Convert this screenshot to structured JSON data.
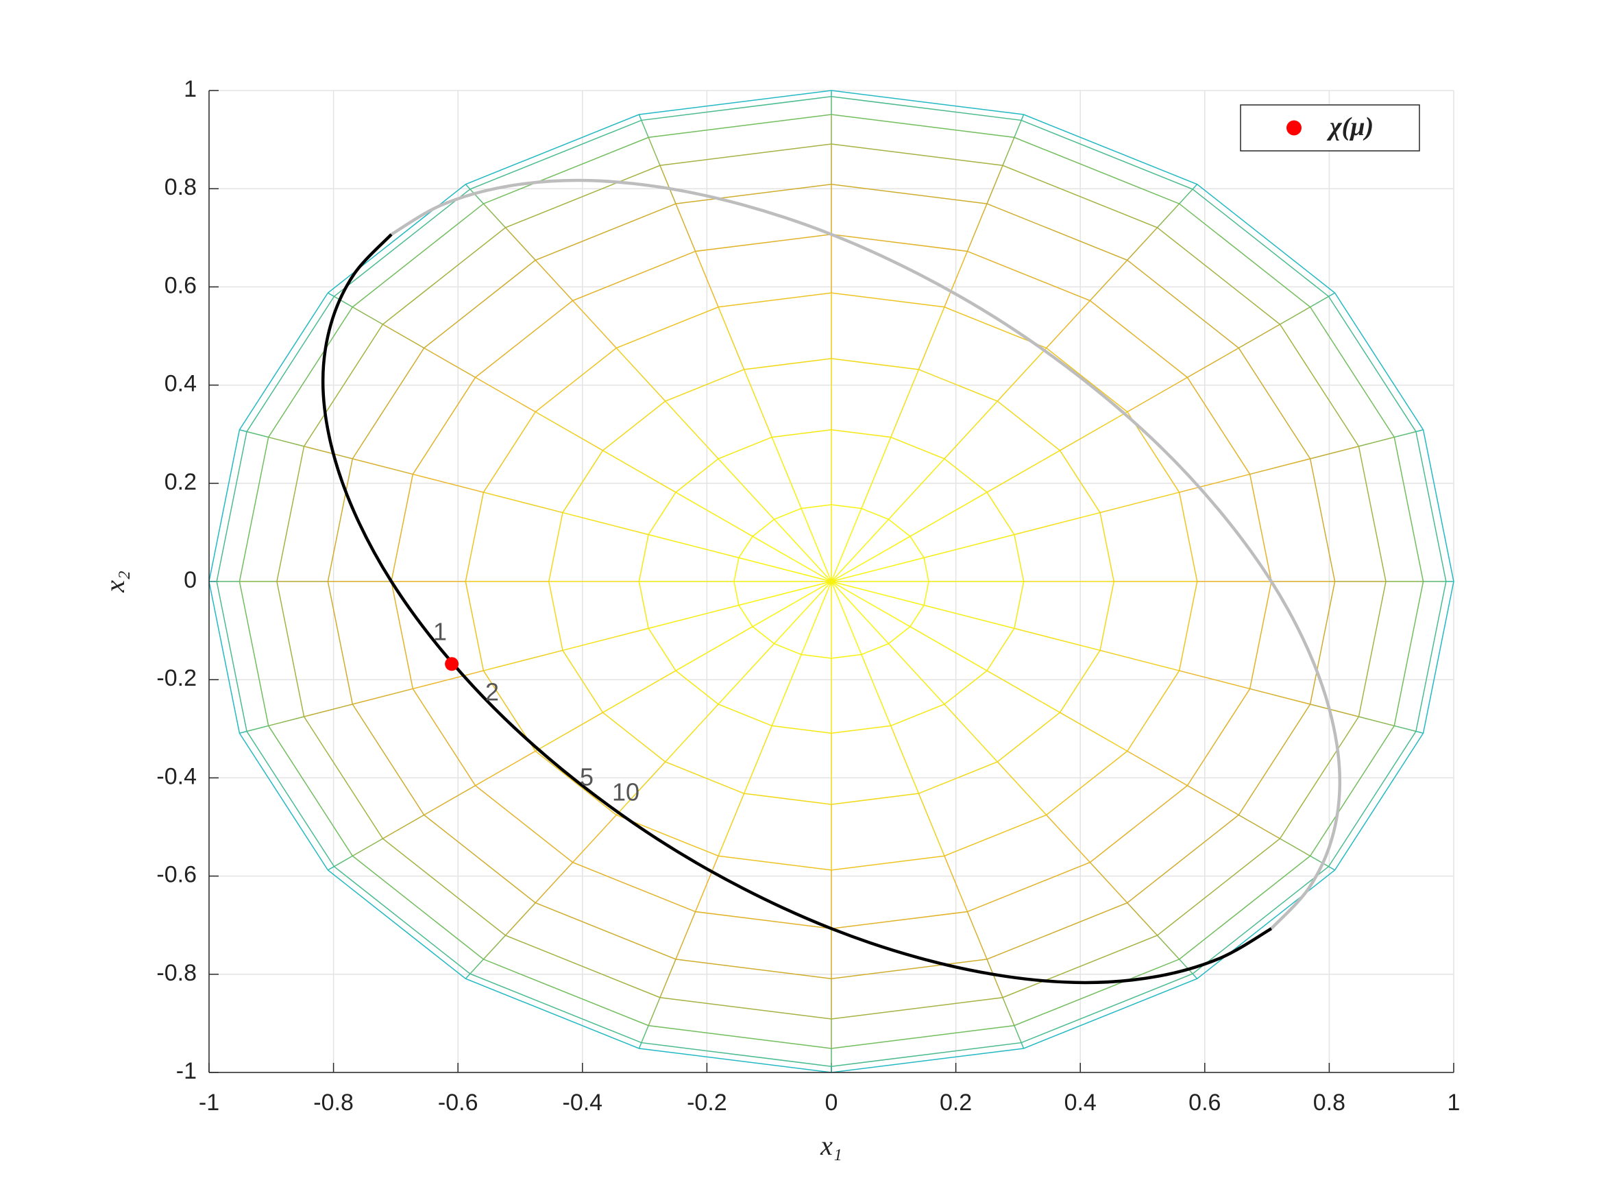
{
  "chart_data": {
    "type": "scatter",
    "x_label": "x₁",
    "y_label": "x₂",
    "xlim": [
      -1,
      1
    ],
    "ylim": [
      -1,
      1
    ],
    "xticks": [
      -1,
      -0.8,
      -0.6,
      -0.4,
      -0.2,
      0,
      0.2,
      0.4,
      0.6,
      0.8,
      1
    ],
    "yticks": [
      -1,
      -0.8,
      -0.6,
      -0.4,
      -0.2,
      0,
      0.2,
      0.4,
      0.6,
      0.8,
      1
    ],
    "grid": true,
    "legend": "upper right",
    "series": [
      {
        "name": "χ(μ)",
        "color": "#ff0000",
        "x": [
          -0.61
        ],
        "y": [
          -0.168
        ]
      }
    ],
    "lines": [
      {
        "color": "#000000",
        "x": [
          -0.707,
          -0.767,
          -0.804,
          -0.817,
          -0.804,
          -0.767,
          -0.707,
          -0.625,
          -0.525,
          -0.408,
          -0.279,
          -0.142,
          0.0,
          0.142,
          0.279,
          0.408,
          0.525,
          0.625,
          0.707
        ],
        "y": [
          0.707,
          0.626,
          0.525,
          0.408,
          0.279,
          0.142,
          0.0,
          -0.142,
          -0.279,
          -0.408,
          -0.525,
          -0.625,
          -0.707,
          -0.767,
          -0.804,
          -0.817,
          -0.804,
          -0.767,
          -0.707
        ]
      },
      {
        "color": "#bdbdbd",
        "x": [
          -0.707,
          -0.626,
          -0.525,
          -0.408,
          -0.279,
          -0.142,
          0.0,
          0.142,
          0.279,
          0.408,
          0.525,
          0.625,
          0.707,
          0.767,
          0.804,
          0.817,
          0.804,
          0.767,
          0.707
        ],
        "y": [
          0.707,
          0.767,
          0.804,
          0.817,
          0.804,
          0.767,
          0.707,
          0.625,
          0.525,
          0.408,
          0.279,
          0.142,
          0.0,
          -0.142,
          -0.279,
          -0.408,
          -0.525,
          -0.625,
          -0.707
        ]
      }
    ],
    "annotations": [
      "1",
      "2",
      "5",
      "10"
    ]
  }
}
